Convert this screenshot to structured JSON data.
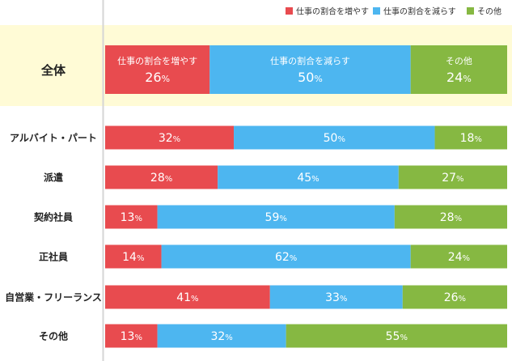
{
  "chart_data": {
    "type": "bar",
    "orientation": "horizontal",
    "stacked": true,
    "percent_suffix": "%",
    "categories": [
      "全体",
      "アルバイト・パート",
      "派遣",
      "契約社員",
      "正社員",
      "自営業・フリーランス",
      "その他"
    ],
    "series": [
      {
        "name": "仕事の割合を増やす",
        "color": "#e84b4f",
        "values": [
          26,
          32,
          28,
          13,
          14,
          41,
          13
        ]
      },
      {
        "name": "仕事の割合を減らす",
        "color": "#4db6f0",
        "values": [
          50,
          50,
          45,
          59,
          62,
          33,
          32
        ]
      },
      {
        "name": "その他",
        "color": "#86b842",
        "values": [
          24,
          18,
          27,
          28,
          24,
          26,
          55
        ]
      }
    ],
    "highlight_category": "全体",
    "highlight_background": "#fffbd6",
    "xlim": [
      0,
      100
    ],
    "legend_position": "top-right",
    "grid": false
  }
}
